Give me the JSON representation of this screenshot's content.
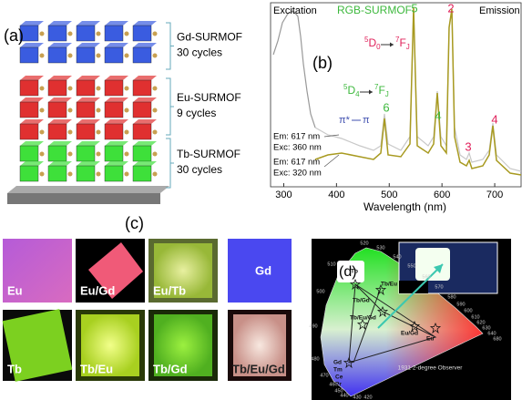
{
  "panel_a": {
    "label": "(a)",
    "layers": [
      {
        "name": "Gd-SURMOF",
        "cycles": "30 cycles"
      },
      {
        "name": "Eu-SURMOF",
        "cycles": "9 cycles"
      },
      {
        "name": "Tb-SURMOF",
        "cycles": "30 cycles"
      }
    ]
  },
  "panel_b": {
    "label": "(b)",
    "excitation": "Excitation",
    "title": "RGB-SURMOF",
    "emission": "Emission",
    "x_label": "Wavelength (nm)",
    "xlim": [
      275,
      750
    ],
    "xticks": [
      300,
      400,
      500,
      600,
      700
    ],
    "peak_labels": [
      "5",
      "2",
      "6",
      "4",
      "3",
      "4"
    ],
    "transitions": [
      [
        {
          "sup": "5",
          "main": "D",
          "sub": "0"
        },
        {
          "sup": "7",
          "main": "F",
          "sub": "J"
        }
      ],
      [
        {
          "sup": "5",
          "main": "D",
          "sub": "4"
        },
        {
          "sup": "7",
          "main": "F",
          "sub": "J"
        }
      ]
    ],
    "pi_transition": [
      "π*",
      "π"
    ],
    "conditions": [
      [
        "Em: 617 nm",
        "Exc: 360 nm"
      ],
      [
        "Em: 617 nm",
        "Exc: 320 nm"
      ]
    ]
  },
  "panel_c": {
    "label": "(c)",
    "samples": [
      "Eu",
      "Eu/Gd",
      "Eu/Tb",
      "Gd",
      "Tb",
      "Tb/Eu",
      "Tb/Gd",
      "Tb/Eu/Gd"
    ]
  },
  "panel_d": {
    "label": "(d)",
    "wavelengths": [
      "520",
      "530",
      "540",
      "550",
      "560",
      "570",
      "580",
      "590",
      "600",
      "610",
      "620",
      "630",
      "640",
      "680",
      "510",
      "500",
      "490",
      "480",
      "470",
      "460",
      "450",
      "440",
      "430",
      "420"
    ],
    "points": [
      "Tb",
      "Tb/Eu",
      "Tb/Gd",
      "Tb/Eu/Gd",
      "Eu/Gd",
      "Eu",
      "Gd",
      "Tm",
      "Ce",
      "Pr"
    ],
    "observer": "1931 2-degree Observer"
  }
}
